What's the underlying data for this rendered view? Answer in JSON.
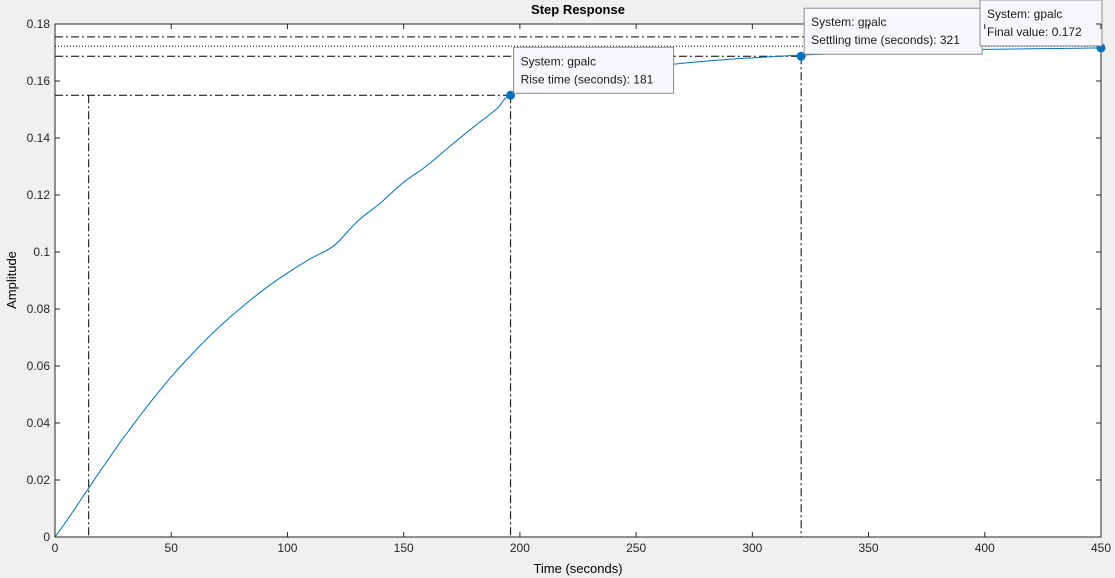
{
  "chart_data": {
    "type": "line",
    "title": "Step Response",
    "xlabel": "Time (seconds)",
    "ylabel": "Amplitude",
    "xlim": [
      0,
      450
    ],
    "ylim": [
      0,
      0.18
    ],
    "xticks": [
      0,
      50,
      100,
      150,
      200,
      250,
      300,
      350,
      400,
      450
    ],
    "yticks": [
      0,
      0.02,
      0.04,
      0.06,
      0.08,
      0.1,
      0.12,
      0.14,
      0.16,
      0.18
    ],
    "xtick_labels": [
      "0",
      "50",
      "100",
      "150",
      "200",
      "250",
      "300",
      "350",
      "400",
      "450"
    ],
    "ytick_labels": [
      "0",
      "0.02",
      "0.04",
      "0.06",
      "0.08",
      "0.1",
      "0.12",
      "0.14",
      "0.16",
      "0.18"
    ],
    "grid": false,
    "colors": {
      "line": "#0072bd",
      "marker": "#0072bd",
      "reference": "#000000"
    },
    "series": [
      {
        "x": [
          0,
          5,
          10,
          15,
          20,
          25,
          30,
          40,
          50,
          60,
          70,
          80,
          90,
          100,
          110,
          120,
          130,
          140,
          150,
          160,
          170,
          180,
          190,
          196,
          210,
          230,
          250,
          270,
          290,
          310,
          321,
          340,
          360,
          380,
          400,
          420,
          440,
          450
        ],
        "y": [
          0,
          0.0057,
          0.0117,
          0.0178,
          0.0238,
          0.0297,
          0.0354,
          0.0462,
          0.0562,
          0.0651,
          0.0732,
          0.0804,
          0.0869,
          0.0926,
          0.0977,
          0.1022,
          0.1107,
          0.1172,
          0.1245,
          0.1303,
          0.1372,
          0.1438,
          0.1502,
          0.1553,
          0.1585,
          0.1618,
          0.1643,
          0.1662,
          0.1676,
          0.1686,
          0.1691,
          0.1698,
          0.1704,
          0.1708,
          0.1711,
          0.1713,
          0.1715,
          0.1716
        ]
      }
    ],
    "reference_lines": {
      "horizontal_dashdot": [
        0.1755,
        0.1687,
        0.155
      ],
      "horizontal_dotted": [
        0.1722
      ],
      "vertical_dashdot": [
        14.5,
        196,
        321
      ]
    },
    "datatips": [
      {
        "x": 196,
        "y": 0.155,
        "system": "System: gpalc",
        "detail": "Rise time (seconds): 181"
      },
      {
        "x": 321,
        "y": 0.1687,
        "system": "System: gpalc",
        "detail": "Settling time (seconds): 321"
      },
      {
        "x": 450,
        "y": 0.1716,
        "system": "System: gpalc",
        "detail": "Final value: 0.172"
      }
    ]
  }
}
